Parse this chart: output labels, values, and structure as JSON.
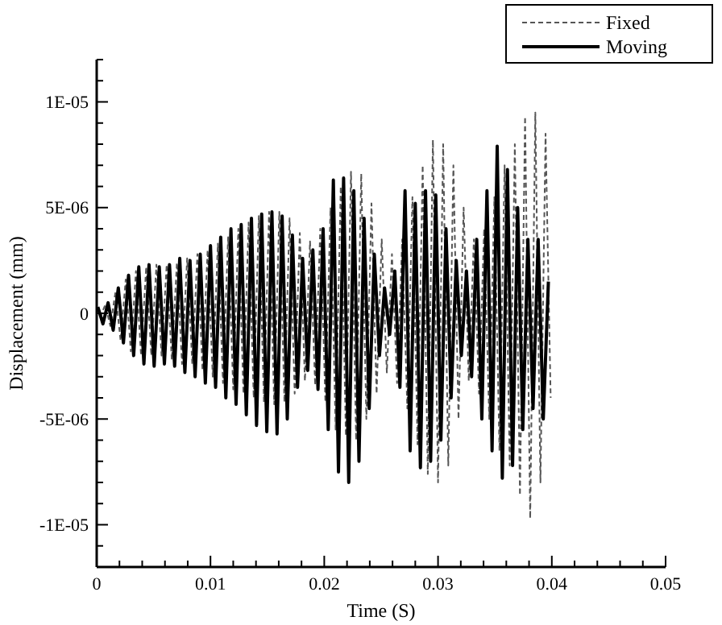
{
  "chart_data": {
    "type": "line",
    "xlabel": "Time (S)",
    "ylabel": "Displacement (mm)",
    "xlim": [
      0,
      0.05
    ],
    "ylim": [
      -1.2e-05,
      1.2e-05
    ],
    "xticks": [
      0,
      {
        "value": 0.002,
        "label": null
      },
      {
        "value": 0.004,
        "label": null
      },
      {
        "value": 0.006,
        "label": null
      },
      {
        "value": 0.008,
        "label": null
      },
      0.01,
      {
        "value": 0.012,
        "label": null
      },
      {
        "value": 0.014,
        "label": null
      },
      {
        "value": 0.016,
        "label": null
      },
      {
        "value": 0.018,
        "label": null
      },
      0.02,
      {
        "value": 0.022,
        "label": null
      },
      {
        "value": 0.024,
        "label": null
      },
      {
        "value": 0.026,
        "label": null
      },
      {
        "value": 0.028,
        "label": null
      },
      0.03,
      {
        "value": 0.032,
        "label": null
      },
      {
        "value": 0.034,
        "label": null
      },
      {
        "value": 0.036,
        "label": null
      },
      {
        "value": 0.038,
        "label": null
      },
      0.04,
      {
        "value": 0.042,
        "label": null
      },
      {
        "value": 0.044,
        "label": null
      },
      {
        "value": 0.046,
        "label": null
      },
      {
        "value": 0.048,
        "label": null
      },
      0.05
    ],
    "yticks": [
      {
        "value": -1.2e-05,
        "label": null
      },
      {
        "value": -1.1e-05,
        "label": null
      },
      {
        "value": -1e-05,
        "label": "-1E-05"
      },
      {
        "value": -9e-06,
        "label": null
      },
      {
        "value": -8e-06,
        "label": null
      },
      {
        "value": -7e-06,
        "label": null
      },
      {
        "value": -6e-06,
        "label": null
      },
      {
        "value": -5e-06,
        "label": "-5E-06"
      },
      {
        "value": -4e-06,
        "label": null
      },
      {
        "value": -3e-06,
        "label": null
      },
      {
        "value": -2e-06,
        "label": null
      },
      {
        "value": -1e-06,
        "label": null
      },
      0,
      {
        "value": 1e-06,
        "label": null
      },
      {
        "value": 2e-06,
        "label": null
      },
      {
        "value": 3e-06,
        "label": null
      },
      {
        "value": 4e-06,
        "label": null
      },
      {
        "value": 5e-06,
        "label": "5E-06"
      },
      {
        "value": 6e-06,
        "label": null
      },
      {
        "value": 7e-06,
        "label": null
      },
      {
        "value": 8e-06,
        "label": null
      },
      {
        "value": 9e-06,
        "label": null
      },
      {
        "value": 1e-05,
        "label": "1E-05"
      },
      {
        "value": 1.1e-05,
        "label": null
      },
      {
        "value": 1.2e-05,
        "label": null
      }
    ],
    "grid": false,
    "legend": "top right",
    "series": [
      {
        "name": "Fixed",
        "color": "#555555",
        "line_style": "dashed",
        "x": [
          0.0003,
          0.00075,
          0.0012,
          0.00165,
          0.0021,
          0.00255,
          0.003,
          0.00345,
          0.0039,
          0.00435,
          0.0048,
          0.00525,
          0.0057,
          0.00615,
          0.0066,
          0.00705,
          0.0075,
          0.00795,
          0.0084,
          0.00885,
          0.0093,
          0.00975,
          0.0102,
          0.01065,
          0.0111,
          0.01155,
          0.012,
          0.01245,
          0.0129,
          0.01335,
          0.0138,
          0.01425,
          0.0147,
          0.01515,
          0.0156,
          0.01605,
          0.0165,
          0.01695,
          0.0174,
          0.01785,
          0.0183,
          0.01875,
          0.0192,
          0.01965,
          0.0201,
          0.02055,
          0.021,
          0.02145,
          0.0219,
          0.02235,
          0.0228,
          0.02325,
          0.0237,
          0.02415,
          0.0246,
          0.02505,
          0.0255,
          0.02595,
          0.0264,
          0.02685,
          0.0273,
          0.02775,
          0.0282,
          0.02865,
          0.0291,
          0.02955,
          0.03,
          0.03045,
          0.0309,
          0.03135,
          0.0318,
          0.03225,
          0.0327,
          0.03315,
          0.0336,
          0.03405,
          0.0345,
          0.03495,
          0.0354,
          0.03585,
          0.0363,
          0.03675,
          0.0372,
          0.03765,
          0.0381,
          0.03855,
          0.039,
          0.03945,
          0.0399
        ],
        "values": [
          -2e-07,
          4e-07,
          -6e-07,
          1e-06,
          -1.3e-06,
          1.6e-06,
          -1.8e-06,
          2e-06,
          -2e-06,
          2.2e-06,
          -2e-06,
          2.3e-06,
          -2e-06,
          2.3e-06,
          -2.2e-06,
          2.4e-06,
          -2.4e-06,
          2.6e-06,
          -2.4e-06,
          2.8e-06,
          -2.7e-06,
          3e-06,
          -3e-06,
          3.3e-06,
          -3.3e-06,
          3.6e-06,
          -3.6e-06,
          4e-06,
          -3.8e-06,
          4.3e-06,
          -4e-06,
          4.6e-06,
          -4.2e-06,
          4.8e-06,
          -4.3e-06,
          4.8e-06,
          -4.2e-06,
          4.5e-06,
          -3.8e-06,
          3.8e-06,
          -3.2e-06,
          3.4e-06,
          -3.4e-06,
          4e-06,
          -4.2e-06,
          5e-06,
          -5.5e-06,
          6e-06,
          -5.8e-06,
          6.7e-06,
          -6e-06,
          6.6e-06,
          -5e-06,
          5.2e-06,
          -3.8e-06,
          3.5e-06,
          -2.8e-06,
          2.8e-06,
          -3.3e-06,
          3.5e-06,
          -4.5e-06,
          5.5e-06,
          -6.2e-06,
          7e-06,
          -7.6e-06,
          8.2e-06,
          -8e-06,
          8e-06,
          -7.2e-06,
          7e-06,
          -5e-06,
          5e-06,
          -3.2e-06,
          3.5e-06,
          -3.8e-06,
          4e-06,
          -5e-06,
          5.5e-06,
          -6.5e-06,
          7e-06,
          -7.2e-06,
          8e-06,
          -8.6e-06,
          9.3e-06,
          -9.7e-06,
          9.5e-06,
          -8e-06,
          8.5e-06,
          -4e-06
        ]
      },
      {
        "name": "Moving",
        "color": "#000000",
        "line_style": "solid",
        "x": [
          0.0001,
          0.00055,
          0.001,
          0.00145,
          0.0019,
          0.00235,
          0.0028,
          0.00325,
          0.0037,
          0.00415,
          0.0046,
          0.00505,
          0.0055,
          0.00595,
          0.0064,
          0.00685,
          0.0073,
          0.00775,
          0.0082,
          0.00865,
          0.0091,
          0.00955,
          0.01,
          0.01045,
          0.0109,
          0.01135,
          0.0118,
          0.01225,
          0.0127,
          0.01315,
          0.0136,
          0.01405,
          0.0145,
          0.01495,
          0.0154,
          0.01585,
          0.0163,
          0.01675,
          0.0172,
          0.01765,
          0.0181,
          0.01855,
          0.019,
          0.01945,
          0.0199,
          0.02035,
          0.0208,
          0.02125,
          0.0217,
          0.02215,
          0.0226,
          0.02305,
          0.0235,
          0.02395,
          0.0244,
          0.02485,
          0.0253,
          0.02575,
          0.0262,
          0.02665,
          0.0271,
          0.02755,
          0.028,
          0.02845,
          0.0289,
          0.02935,
          0.0298,
          0.03025,
          0.0307,
          0.03115,
          0.0316,
          0.03205,
          0.0325,
          0.03295,
          0.0334,
          0.03385,
          0.0343,
          0.03475,
          0.0352,
          0.03565,
          0.0361,
          0.03655,
          0.037,
          0.03745,
          0.0379,
          0.03835,
          0.0388,
          0.03925,
          0.0397
        ],
        "values": [
          3e-07,
          -5e-07,
          5e-07,
          -8e-07,
          1.2e-06,
          -1.4e-06,
          1.8e-06,
          -2e-06,
          2.2e-06,
          -2.4e-06,
          2.3e-06,
          -2.5e-06,
          2.2e-06,
          -2.4e-06,
          2.3e-06,
          -2.5e-06,
          2.6e-06,
          -2.8e-06,
          2.5e-06,
          -3e-06,
          2.8e-06,
          -3.3e-06,
          3.2e-06,
          -3.5e-06,
          3.6e-06,
          -4e-06,
          4e-06,
          -4.3e-06,
          4.2e-06,
          -4.8e-06,
          4.5e-06,
          -5.3e-06,
          4.7e-06,
          -5.6e-06,
          4.8e-06,
          -5.7e-06,
          4.6e-06,
          -5e-06,
          3.7e-06,
          -3.5e-06,
          2.6e-06,
          -2.7e-06,
          3e-06,
          -3.6e-06,
          4e-06,
          -5.5e-06,
          6.3e-06,
          -7.5e-06,
          6.4e-06,
          -8e-06,
          5.8e-06,
          -7e-06,
          4.5e-06,
          -4.5e-06,
          2.8e-06,
          -2e-06,
          1.2e-06,
          -1e-06,
          2e-06,
          -3.5e-06,
          5.8e-06,
          -6.5e-06,
          5.2e-06,
          -7.3e-06,
          5.8e-06,
          -7e-06,
          5.6e-06,
          -6e-06,
          4e-06,
          -4e-06,
          2.5e-06,
          -2e-06,
          2e-06,
          -3e-06,
          3.5e-06,
          -5e-06,
          5.8e-06,
          -6.5e-06,
          7.9e-06,
          -7.8e-06,
          6.8e-06,
          -7.2e-06,
          5e-06,
          -5.5e-06,
          3.5e-06,
          -4.5e-06,
          3.5e-06,
          -5e-06,
          1.5e-06
        ]
      }
    ]
  }
}
